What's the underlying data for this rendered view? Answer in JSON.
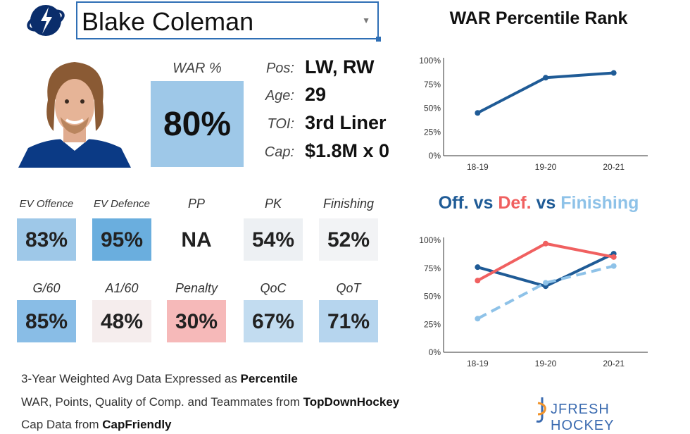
{
  "player": {
    "name": "Blake Coleman"
  },
  "war": {
    "label": "WAR %",
    "value": "80%"
  },
  "info": [
    {
      "label": "Pos:",
      "value": "LW, RW"
    },
    {
      "label": "Age:",
      "value": "29"
    },
    {
      "label": "TOI:",
      "value": "3rd Liner"
    },
    {
      "label": "Cap:",
      "value": "$1.8M x 0"
    }
  ],
  "metrics_row1": [
    {
      "label": "EV Offence",
      "value": "83%",
      "color": "#9ec8e8"
    },
    {
      "label": "EV Defence",
      "value": "95%",
      "color": "#6aaede"
    },
    {
      "label": "PP",
      "value": "NA",
      "color": "#ffffff"
    },
    {
      "label": "PK",
      "value": "54%",
      "color": "#edf0f3"
    },
    {
      "label": "Finishing",
      "value": "52%",
      "color": "#f2f3f5"
    }
  ],
  "metrics_row2": [
    {
      "label": "G/60",
      "value": "85%",
      "color": "#89bde6"
    },
    {
      "label": "A1/60",
      "value": "48%",
      "color": "#f5eded"
    },
    {
      "label": "Penalty",
      "value": "30%",
      "color": "#f6b9b9"
    },
    {
      "label": "QoC",
      "value": "67%",
      "color": "#c2dcf0"
    },
    {
      "label": "QoT",
      "value": "71%",
      "color": "#b6d5ee"
    }
  ],
  "footer": {
    "line1_prefix": "3-Year Weighted Avg Data Expressed as ",
    "line1_bold": "Percentile",
    "line2_prefix": "WAR, Points, Quality of Comp. and Teammates from ",
    "line2_bold": "TopDownHockey",
    "line3_prefix": "Cap Data from ",
    "line3_bold": "CapFriendly"
  },
  "brand": {
    "text": "JFRESH HOCKEY"
  },
  "colors": {
    "offence": "#1f5b96",
    "defence": "#f06060",
    "finishing": "#8ec2e8"
  },
  "chart_data": [
    {
      "type": "line",
      "title": "WAR Percentile Rank",
      "categories": [
        "18-19",
        "19-20",
        "20-21"
      ],
      "yticks": [
        "0%",
        "25%",
        "50%",
        "75%",
        "100%"
      ],
      "ylim": [
        0,
        100
      ],
      "series": [
        {
          "values": [
            45,
            82,
            87
          ],
          "color": "#1f5b96"
        }
      ]
    },
    {
      "type": "line",
      "title_parts": [
        {
          "text": "Off.",
          "color": "#1f5b96"
        },
        {
          "text": " vs ",
          "color": "#1f5b96"
        },
        {
          "text": "Def.",
          "color": "#f06060"
        },
        {
          "text": " vs ",
          "color": "#1f5b96"
        },
        {
          "text": "Finishing",
          "color": "#8ec2e8"
        }
      ],
      "categories": [
        "18-19",
        "19-20",
        "20-21"
      ],
      "yticks": [
        "0%",
        "25%",
        "50%",
        "75%",
        "100%"
      ],
      "ylim": [
        0,
        100
      ],
      "series": [
        {
          "name": "Off.",
          "values": [
            76,
            59,
            88
          ],
          "color": "#1f5b96",
          "dashed": false
        },
        {
          "name": "Def.",
          "values": [
            64,
            97,
            85
          ],
          "color": "#f06060",
          "dashed": false
        },
        {
          "name": "Finishing",
          "values": [
            30,
            62,
            77
          ],
          "color": "#8ec2e8",
          "dashed": true
        }
      ]
    }
  ]
}
